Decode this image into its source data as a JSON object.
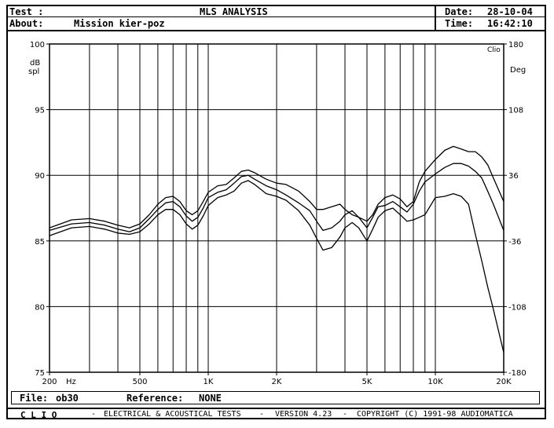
{
  "header": {
    "test_label": "Test :",
    "about_label": "About:",
    "about_value": "Mission kier-poz",
    "title": "MLS ANALYSIS",
    "date_label": "Date:",
    "date_value": "28-10-04",
    "time_label": "Time:",
    "time_value": "16:42:10"
  },
  "file_bar": {
    "file_label": "File:",
    "file_value": "ob30",
    "reference_label": "Reference:",
    "reference_value": "NONE"
  },
  "footer": {
    "brand": "C L I O",
    "sep1": "-",
    "desc": "ELECTRICAL & ACOUSTICAL TESTS",
    "sep2": "-",
    "version": "VERSION 4.23",
    "sep3": "-",
    "copyright": "COPYRIGHT (C) 1991-98 AUDIOMATICA"
  },
  "chart_data": {
    "type": "line",
    "corner_label": "Clio",
    "x_unit_label": "Hz",
    "x_scale": "log",
    "xlim": [
      200,
      20000
    ],
    "x_ticks": [
      {
        "value": 200,
        "label": "200"
      },
      {
        "value": 500,
        "label": "500"
      },
      {
        "value": 1000,
        "label": "1K"
      },
      {
        "value": 2000,
        "label": "2K"
      },
      {
        "value": 5000,
        "label": "5K"
      },
      {
        "value": 10000,
        "label": "10K"
      },
      {
        "value": 20000,
        "label": "20K"
      }
    ],
    "x_gridlines": [
      200,
      300,
      400,
      500,
      600,
      700,
      800,
      900,
      1000,
      2000,
      3000,
      4000,
      5000,
      6000,
      7000,
      8000,
      9000,
      10000,
      20000
    ],
    "y_left_label_line1": "dB",
    "y_left_label_line2": "spl",
    "ylim_left": [
      75,
      100
    ],
    "y_left_ticks": [
      100,
      95,
      90,
      85,
      80,
      75
    ],
    "y_right_label": "Deg",
    "ylim_right": [
      -180,
      180
    ],
    "y_right_ticks": [
      180,
      108,
      36,
      -36,
      -108,
      -180
    ],
    "grid": true,
    "series": [
      {
        "x": [
          200,
          250,
          300,
          350,
          400,
          450,
          500,
          550,
          600,
          650,
          700,
          750,
          800,
          850,
          900,
          950,
          1000,
          1100,
          1200,
          1300,
          1400,
          1500,
          1600,
          1800,
          2000,
          2200,
          2500,
          2800,
          3000,
          3200,
          3500,
          3800,
          4000,
          4300,
          4600,
          5000,
          5300,
          5600,
          6000,
          6500,
          7000,
          7500,
          8000,
          8500,
          9000,
          10000,
          11000,
          12000,
          13000,
          14000,
          15000,
          16000,
          17000,
          18000,
          20000
        ],
        "y": [
          86.0,
          86.6,
          86.7,
          86.5,
          86.2,
          86.0,
          86.3,
          87.0,
          87.8,
          88.3,
          88.4,
          88.0,
          87.3,
          87.0,
          87.3,
          88.0,
          88.7,
          89.2,
          89.3,
          89.8,
          90.3,
          90.4,
          90.2,
          89.7,
          89.4,
          89.3,
          88.8,
          88.0,
          87.4,
          87.4,
          87.6,
          87.8,
          87.4,
          87.0,
          86.8,
          86.5,
          87.0,
          87.8,
          88.3,
          88.5,
          88.2,
          87.6,
          88.0,
          89.5,
          90.3,
          91.2,
          91.9,
          92.2,
          92.0,
          91.8,
          91.8,
          91.4,
          90.8,
          89.8,
          88.0
        ]
      },
      {
        "x": [
          200,
          250,
          300,
          350,
          400,
          450,
          500,
          550,
          600,
          650,
          700,
          750,
          800,
          850,
          900,
          950,
          1000,
          1100,
          1200,
          1300,
          1400,
          1500,
          1600,
          1800,
          2000,
          2200,
          2500,
          2800,
          3000,
          3200,
          3500,
          3800,
          4000,
          4300,
          4600,
          5000,
          5300,
          5600,
          6000,
          6500,
          7000,
          7500,
          8000,
          8500,
          9000,
          10000,
          11000,
          12000,
          13000,
          14000,
          15000,
          16000,
          17000,
          18000,
          20000
        ],
        "y": [
          85.8,
          86.3,
          86.4,
          86.2,
          85.9,
          85.7,
          86.0,
          86.7,
          87.4,
          87.9,
          88.0,
          87.6,
          86.9,
          86.5,
          86.8,
          87.5,
          88.3,
          88.7,
          88.9,
          89.4,
          89.9,
          90.0,
          89.7,
          89.2,
          88.9,
          88.5,
          87.9,
          87.3,
          86.5,
          85.8,
          86.0,
          86.5,
          87.0,
          87.3,
          86.8,
          86.0,
          86.8,
          87.6,
          87.7,
          88.0,
          87.6,
          87.2,
          87.8,
          88.8,
          89.5,
          90.1,
          90.6,
          90.9,
          90.9,
          90.7,
          90.3,
          89.8,
          88.8,
          87.8,
          85.8
        ]
      },
      {
        "x": [
          200,
          250,
          300,
          350,
          400,
          450,
          500,
          550,
          600,
          650,
          700,
          750,
          800,
          850,
          900,
          950,
          1000,
          1100,
          1200,
          1300,
          1400,
          1500,
          1600,
          1800,
          2000,
          2200,
          2500,
          2800,
          3000,
          3200,
          3500,
          3800,
          4000,
          4300,
          4600,
          5000,
          5300,
          5600,
          6000,
          6500,
          7000,
          7500,
          8000,
          8500,
          9000,
          10000,
          11000,
          12000,
          13000,
          14000,
          15000,
          16000,
          17000,
          18000,
          20000
        ],
        "y": [
          85.4,
          86.0,
          86.1,
          85.9,
          85.6,
          85.5,
          85.7,
          86.3,
          87.0,
          87.4,
          87.4,
          87.0,
          86.3,
          85.9,
          86.2,
          86.9,
          87.7,
          88.3,
          88.5,
          88.8,
          89.4,
          89.6,
          89.3,
          88.6,
          88.4,
          88.1,
          87.3,
          86.2,
          85.2,
          84.3,
          84.5,
          85.3,
          86.0,
          86.4,
          86.0,
          85.0,
          85.9,
          86.8,
          87.3,
          87.5,
          87.0,
          86.5,
          86.6,
          86.8,
          87.0,
          88.3,
          88.4,
          88.6,
          88.4,
          87.8,
          85.5,
          83.5,
          81.5,
          79.8,
          76.5
        ]
      }
    ]
  }
}
